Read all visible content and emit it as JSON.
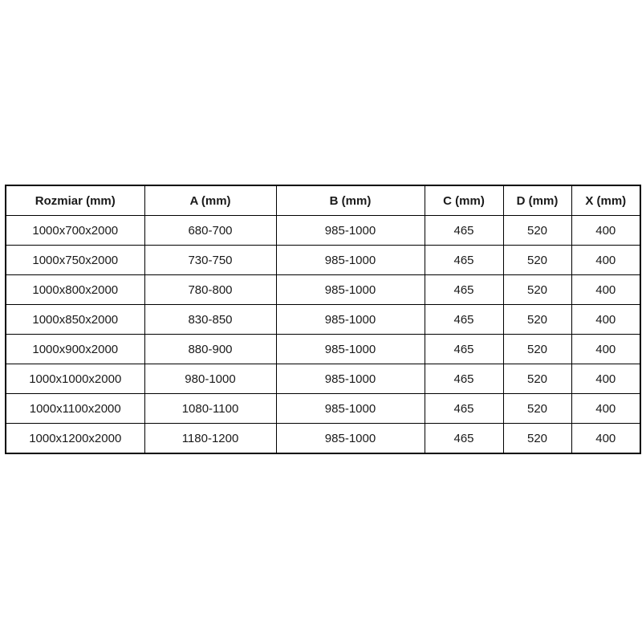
{
  "page": {
    "background": "#ffffff"
  },
  "table": {
    "border_color": "#000000",
    "text_color": "#1a1a1a",
    "columns": [
      {
        "key": "rozmiar",
        "label": "Rozmiar (mm)"
      },
      {
        "key": "a",
        "label": "A (mm)"
      },
      {
        "key": "b",
        "label": "B (mm)"
      },
      {
        "key": "c",
        "label": "C (mm)"
      },
      {
        "key": "d",
        "label": "D (mm)"
      },
      {
        "key": "x",
        "label": "X (mm)"
      }
    ],
    "rows": [
      [
        "1000x700x2000",
        "680-700",
        "985-1000",
        "465",
        "520",
        "400"
      ],
      [
        "1000x750x2000",
        "730-750",
        "985-1000",
        "465",
        "520",
        "400"
      ],
      [
        "1000x800x2000",
        "780-800",
        "985-1000",
        "465",
        "520",
        "400"
      ],
      [
        "1000x850x2000",
        "830-850",
        "985-1000",
        "465",
        "520",
        "400"
      ],
      [
        "1000x900x2000",
        "880-900",
        "985-1000",
        "465",
        "520",
        "400"
      ],
      [
        "1000x1000x2000",
        "980-1000",
        "985-1000",
        "465",
        "520",
        "400"
      ],
      [
        "1000x1100x2000",
        "1080-1100",
        "985-1000",
        "465",
        "520",
        "400"
      ],
      [
        "1000x1200x2000",
        "1180-1200",
        "985-1000",
        "465",
        "520",
        "400"
      ]
    ]
  }
}
